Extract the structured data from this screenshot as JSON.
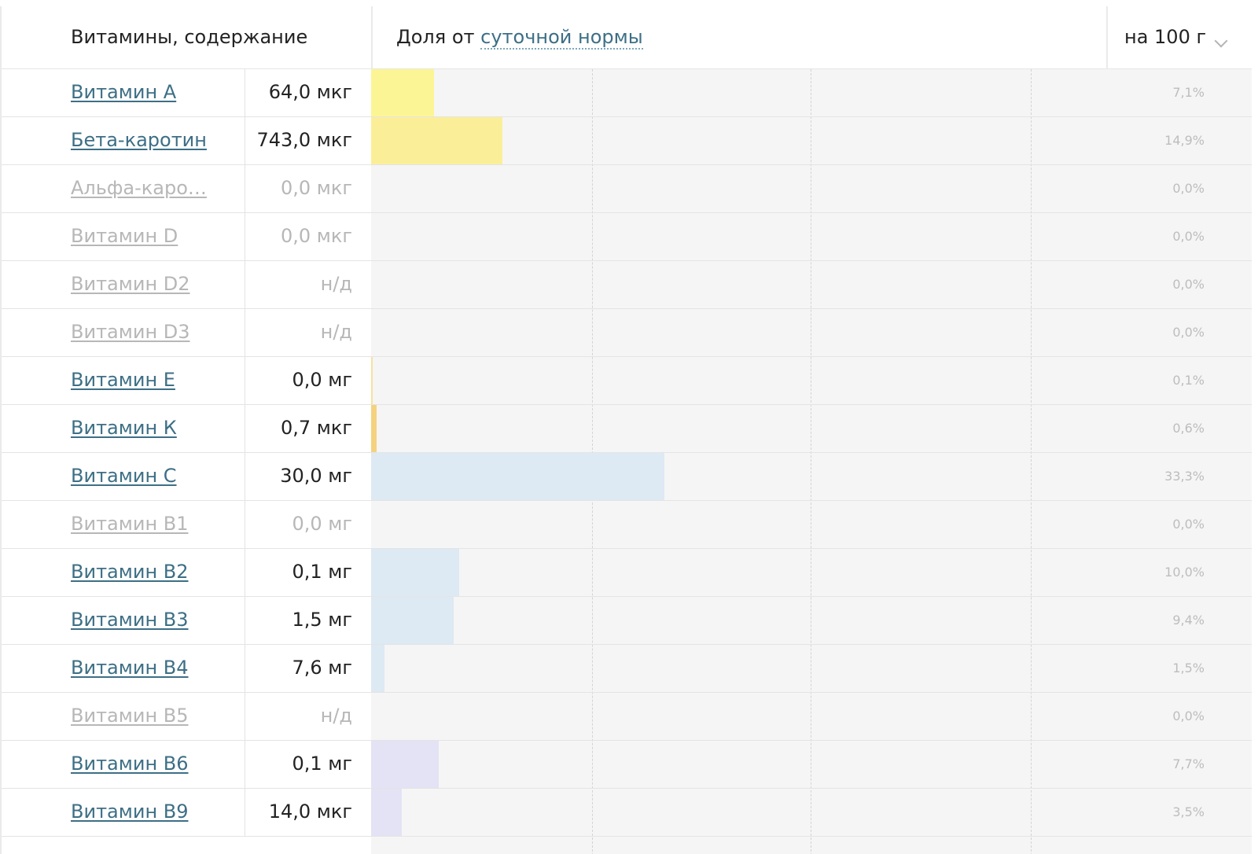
{
  "header": {
    "title": "Витамины, содержание",
    "share_prefix": "Доля от",
    "share_link": "суточной нормы",
    "per_select": "на 100 г"
  },
  "colors": {
    "link": "#3d6f86",
    "muted_text": "#b7b7b7",
    "bar_background": "#f5f5f5"
  },
  "vitamins": [
    {
      "name": "Витамин А",
      "amount": "64,0 мкг",
      "percent": "7,1%",
      "share": 7.1,
      "color": "#fcf596",
      "muted": false
    },
    {
      "name": "Бета-каротин",
      "amount": "743,0 мкг",
      "percent": "14,9%",
      "share": 14.9,
      "color": "#fbee98",
      "muted": false
    },
    {
      "name": "Альфа-каро…",
      "amount": "0,0 мкг",
      "percent": "0,0%",
      "share": 0,
      "color": "#fbee98",
      "muted": true
    },
    {
      "name": "Витамин D",
      "amount": "0,0 мкг",
      "percent": "0,0%",
      "share": 0,
      "color": "#fbee98",
      "muted": true
    },
    {
      "name": "Витамин D2",
      "amount": "н/д",
      "percent": "0,0%",
      "share": 0,
      "color": "#fbee98",
      "muted": true
    },
    {
      "name": "Витамин D3",
      "amount": "н/д",
      "percent": "0,0%",
      "share": 0,
      "color": "#fbee98",
      "muted": true
    },
    {
      "name": "Витамин Е",
      "amount": "0,0 мг",
      "percent": "0,1%",
      "share": 0.1,
      "color": "#f8e1a0",
      "muted": false
    },
    {
      "name": "Витамин К",
      "amount": "0,7 мкг",
      "percent": "0,6%",
      "share": 0.6,
      "color": "#f5d27f",
      "muted": false
    },
    {
      "name": "Витамин С",
      "amount": "30,0 мг",
      "percent": "33,3%",
      "share": 33.3,
      "color": "#dde9f3",
      "muted": false
    },
    {
      "name": "Витамин В1",
      "amount": "0,0 мг",
      "percent": "0,0%",
      "share": 0,
      "color": "#dde9f3",
      "muted": true
    },
    {
      "name": "Витамин В2",
      "amount": "0,1 мг",
      "percent": "10,0%",
      "share": 10.0,
      "color": "#dde9f3",
      "muted": false
    },
    {
      "name": "Витамин В3",
      "amount": "1,5 мг",
      "percent": "9,4%",
      "share": 9.4,
      "color": "#dde9f3",
      "muted": false
    },
    {
      "name": "Витамин В4",
      "amount": "7,6 мг",
      "percent": "1,5%",
      "share": 1.5,
      "color": "#dde9f3",
      "muted": false
    },
    {
      "name": "Витамин В5",
      "amount": "н/д",
      "percent": "0,0%",
      "share": 0,
      "color": "#dde9f3",
      "muted": true
    },
    {
      "name": "Витамин В6",
      "amount": "0,1 мг",
      "percent": "7,7%",
      "share": 7.7,
      "color": "#e3e3f5",
      "muted": false
    },
    {
      "name": "Витамин В9",
      "amount": "14,0 мкг",
      "percent": "3,5%",
      "share": 3.5,
      "color": "#e3e3f5",
      "muted": false
    }
  ]
}
